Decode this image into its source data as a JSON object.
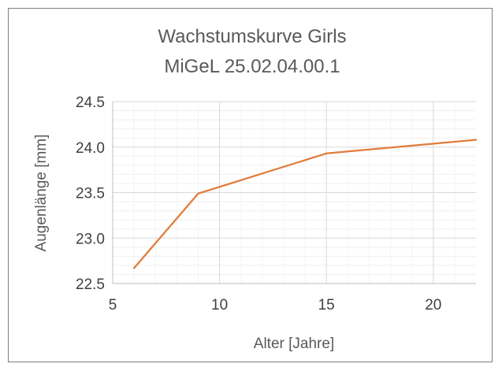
{
  "chart_data": {
    "type": "line",
    "title": "Wachstumskurve Girls",
    "subtitle": "MiGeL 25.02.04.00.1",
    "xlabel": "Alter [Jahre]",
    "ylabel": "Augenlänge [mm]",
    "xlim": [
      5,
      22
    ],
    "ylim": [
      22.5,
      24.5
    ],
    "x_ticks": [
      5,
      10,
      15,
      20
    ],
    "x_tick_labels": [
      "5",
      "10",
      "15",
      "20"
    ],
    "y_ticks": [
      22.5,
      23.0,
      23.5,
      24.0,
      24.5
    ],
    "y_tick_labels": [
      "22.5",
      "23.0",
      "23.5",
      "24.0",
      "24.5"
    ],
    "x_minor_step": 1,
    "y_minor_step": 0.1,
    "grid": true,
    "legend": "none",
    "series": [
      {
        "color": "#e07b3a",
        "x": [
          6,
          9,
          15,
          22
        ],
        "y": [
          22.67,
          23.49,
          23.93,
          24.08
        ]
      }
    ]
  }
}
